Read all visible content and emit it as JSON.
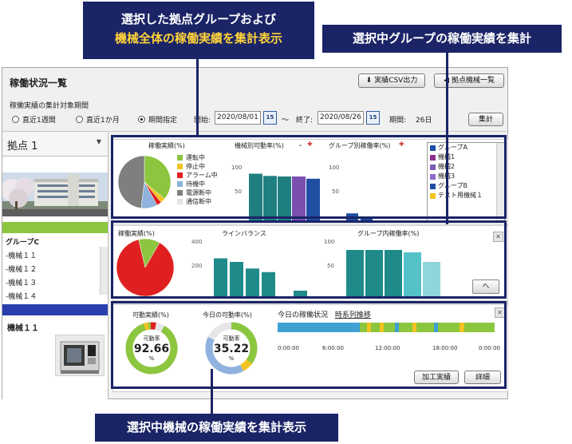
{
  "callouts": {
    "top_line1": "選択した拠点グループおよび",
    "top_line2": "機械全体の稼働実績を集計表示",
    "right": "選択中グループの稼働実績を集計",
    "bottom": "選択中機械の稼働実績を集計表示"
  },
  "header": {
    "title": "稼働状況一覧",
    "csv_button": "実績CSV出力",
    "base_list_button": "拠点機械一覧",
    "period_label": "稼働実績の集計対象期間",
    "radios": [
      {
        "label": "直近1週間",
        "selected": false
      },
      {
        "label": "直近1か月",
        "selected": false
      },
      {
        "label": "期間指定",
        "selected": true
      }
    ],
    "start_label": "開始:",
    "start_date": "2020/08/01",
    "end_sep": "～",
    "end_label": "終了:",
    "end_date": "2020/08/26",
    "days_label": "期間:",
    "days_value": "26日",
    "calendar_day": "15",
    "aggregate_button": "集計"
  },
  "sidebar": {
    "base_name": "拠点 1",
    "group_name": "グループC",
    "machines": [
      "-機械１１",
      "-機械１２",
      "-機械１３",
      "-機械１４"
    ],
    "selected_machine": "機械１１"
  },
  "overall_panel": {
    "pie_title": "稼働実績(%)",
    "pie_legend": [
      {
        "label": "運転中",
        "color": "#8cc63f"
      },
      {
        "label": "停止中",
        "color": "#f2c31f"
      },
      {
        "label": "アラーム中",
        "color": "#e02020"
      },
      {
        "label": "待機中",
        "color": "#8fb2de"
      },
      {
        "label": "電源断中",
        "color": "#7f7f7f"
      },
      {
        "label": "通信断中",
        "color": "#e4e4e4"
      }
    ],
    "pie_slices": [
      {
        "status": "運転中",
        "value": 36
      },
      {
        "status": "停止中",
        "value": 3
      },
      {
        "status": "アラーム中",
        "value": 3
      },
      {
        "status": "待機中",
        "value": 10
      },
      {
        "status": "電源断中",
        "value": 48
      }
    ],
    "machine_rate_title": "機械別可動率(%)",
    "group_rate_title": "グループ別稼働率(%)",
    "axis_ticks": [
      "100",
      "50"
    ],
    "list_items": [
      {
        "label": "グループA",
        "color": "#1f4ea3"
      },
      {
        "label": "機械1",
        "color": "#8b2f8f"
      },
      {
        "label": "機械2",
        "color": "#7b5cb5"
      },
      {
        "label": "機械3",
        "color": "#8e6ccf"
      },
      {
        "label": "グループB",
        "color": "#1f4ea3"
      },
      {
        "label": "テスト用機械１",
        "color": "#f2c31f"
      }
    ]
  },
  "group_panel": {
    "pie_title": "稼働実績(%)",
    "pie_slices": [
      {
        "status": "アラーム中",
        "value": 88
      },
      {
        "status": "運転中",
        "value": 12
      }
    ],
    "line_balance_title": "ラインバランス",
    "line_balance_ticks": [
      "400",
      "200"
    ],
    "group_rate_title": "グループ内稼働率(%)",
    "group_rate_ticks": [
      "100",
      "50"
    ],
    "up_button": "へ"
  },
  "machine_panel": {
    "actual_title": "可動実績(%)",
    "actual_caption": "可動率",
    "actual_value": "92.66",
    "actual_unit": "%",
    "today_title": "今日の可動率(%)",
    "today_caption": "可動率",
    "today_value": "35.22",
    "today_unit": "%",
    "timeline_title": "今日の稼働状況",
    "timeline_subtitle": "時系列推移",
    "timeline_ticks": [
      "0:00:00",
      "6:00:00",
      "12:00:00",
      "18:00:00",
      "0:00:00"
    ],
    "proc_button": "加工実績",
    "detail_button": "詳細"
  },
  "chart_data": [
    {
      "type": "pie",
      "title": "稼働実績(%)",
      "categories": [
        "運転中",
        "停止中",
        "アラーム中",
        "待機中",
        "電源断中"
      ],
      "values": [
        36,
        3,
        3,
        10,
        48
      ]
    },
    {
      "type": "bar",
      "title": "機械別可動率(%)",
      "categories": [
        "",
        "",
        "",
        "",
        ""
      ],
      "values": [
        85,
        81,
        80,
        80,
        76
      ],
      "colors": [
        "#1f7f7f",
        "#1f7f7f",
        "#1f7f7f",
        "#7b4fb0",
        "#1f4ea3"
      ],
      "ylim": [
        0,
        100
      ]
    },
    {
      "type": "bar",
      "title": "グループ別稼働率(%)",
      "categories": [
        "",
        ""
      ],
      "values": [
        14,
        5
      ],
      "ylim": [
        0,
        100
      ]
    },
    {
      "type": "bar",
      "title": "ラインバランス",
      "categories": [
        "",
        "",
        "",
        "",
        "",
        ""
      ],
      "values": [
        330,
        300,
        245,
        215,
        0,
        60
      ],
      "ylim": [
        0,
        400
      ]
    },
    {
      "type": "bar",
      "title": "グループ内稼働率(%)",
      "categories": [
        "",
        "",
        "",
        "",
        ""
      ],
      "values": [
        100,
        100,
        100,
        95,
        75
      ],
      "ylim": [
        0,
        100
      ]
    }
  ]
}
